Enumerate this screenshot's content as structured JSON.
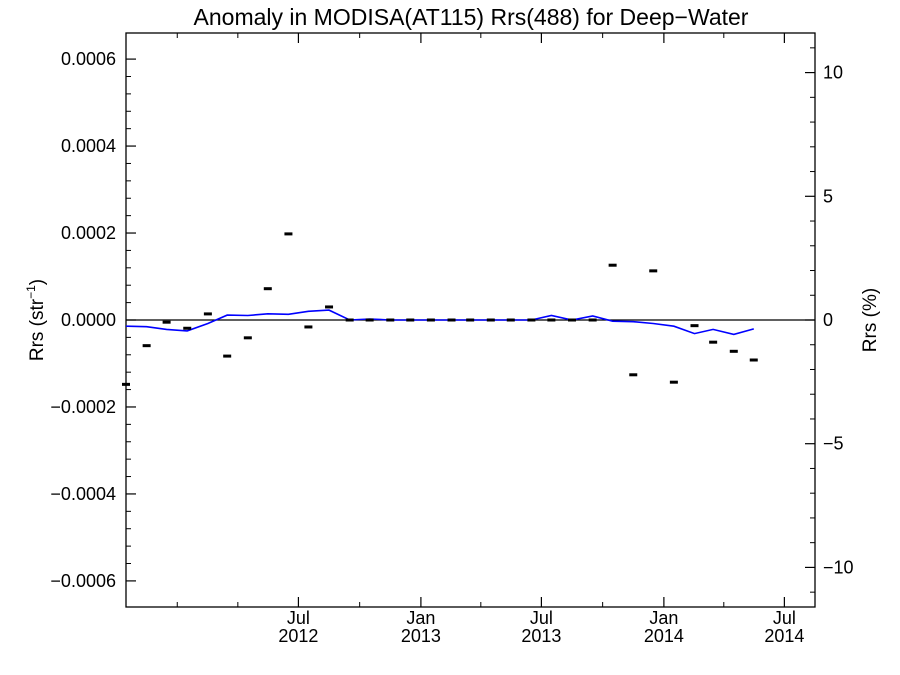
{
  "chart_data": {
    "type": "line",
    "title": "Anomaly in MODISA(AT115) Rrs(488) for Deep−Water",
    "ylabel_left": "Rrs (str⁻¹)",
    "ylabel_left_main": "Rrs (str",
    "ylabel_left_sup": "−1",
    "ylabel_left_close": ")",
    "ylabel_right": "Rrs (%)",
    "x_range": [
      "2011-10-16",
      "2014-08-16"
    ],
    "ylim_left": [
      -0.00066,
      0.00066
    ],
    "ylim_right": [
      -11.6,
      11.6
    ],
    "y_ticks_left": [
      {
        "value": 0.0006,
        "label": "0.0006"
      },
      {
        "value": 0.0004,
        "label": "0.0004"
      },
      {
        "value": 0.0002,
        "label": "0.0002"
      },
      {
        "value": 0.0,
        "label": "0.0000"
      },
      {
        "value": -0.0002,
        "label": "−0.0002"
      },
      {
        "value": -0.0004,
        "label": "−0.0004"
      },
      {
        "value": -0.0006,
        "label": "−0.0006"
      }
    ],
    "y_ticks_right": [
      {
        "value": 10,
        "label": "10"
      },
      {
        "value": 5,
        "label": "5"
      },
      {
        "value": 0,
        "label": "0"
      },
      {
        "value": -5,
        "label": "−5"
      },
      {
        "value": -10,
        "label": "−10"
      }
    ],
    "x_ticks": [
      {
        "date": "2012-07-01",
        "month": "Jul",
        "year": "2012"
      },
      {
        "date": "2013-01-01",
        "month": "Jan",
        "year": "2013"
      },
      {
        "date": "2013-07-01",
        "month": "Jul",
        "year": "2013"
      },
      {
        "date": "2014-01-01",
        "month": "Jan",
        "year": "2014"
      },
      {
        "date": "2014-07-01",
        "month": "Jul",
        "year": "2014"
      }
    ],
    "zero_line": 0,
    "series": [
      {
        "type": "line",
        "color": "#0000ff",
        "axis": "right",
        "points": [
          {
            "x": "2011-10-16",
            "y": -0.25
          },
          {
            "x": "2011-11-16",
            "y": -0.27
          },
          {
            "x": "2011-12-16",
            "y": -0.38
          },
          {
            "x": "2012-01-16",
            "y": -0.44
          },
          {
            "x": "2012-02-16",
            "y": -0.14
          },
          {
            "x": "2012-03-16",
            "y": 0.2
          },
          {
            "x": "2012-04-16",
            "y": 0.18
          },
          {
            "x": "2012-05-16",
            "y": 0.25
          },
          {
            "x": "2012-06-16",
            "y": 0.23
          },
          {
            "x": "2012-07-16",
            "y": 0.35
          },
          {
            "x": "2012-08-16",
            "y": 0.4
          },
          {
            "x": "2012-09-16",
            "y": 0.0
          },
          {
            "x": "2012-10-16",
            "y": 0.04
          },
          {
            "x": "2012-11-16",
            "y": 0.0
          },
          {
            "x": "2012-12-16",
            "y": 0.0
          },
          {
            "x": "2013-01-16",
            "y": 0.0
          },
          {
            "x": "2013-02-16",
            "y": 0.0
          },
          {
            "x": "2013-03-16",
            "y": 0.0
          },
          {
            "x": "2013-04-16",
            "y": 0.0
          },
          {
            "x": "2013-05-16",
            "y": 0.0
          },
          {
            "x": "2013-06-16",
            "y": 0.0
          },
          {
            "x": "2013-07-16",
            "y": 0.18
          },
          {
            "x": "2013-08-16",
            "y": 0.0
          },
          {
            "x": "2013-09-16",
            "y": 0.16
          },
          {
            "x": "2013-10-16",
            "y": -0.05
          },
          {
            "x": "2013-11-16",
            "y": -0.07
          },
          {
            "x": "2013-12-16",
            "y": -0.14
          },
          {
            "x": "2014-01-16",
            "y": -0.25
          },
          {
            "x": "2014-02-16",
            "y": -0.55
          },
          {
            "x": "2014-03-16",
            "y": -0.38
          },
          {
            "x": "2014-04-16",
            "y": -0.58
          },
          {
            "x": "2014-05-16",
            "y": -0.36
          }
        ]
      },
      {
        "type": "scatter",
        "marker": "dash",
        "color": "#000000",
        "axis": "left",
        "points": [
          {
            "x": "2011-10-16",
            "y": -0.000148
          },
          {
            "x": "2011-11-16",
            "y": -5.9e-05
          },
          {
            "x": "2011-12-16",
            "y": -5e-06
          },
          {
            "x": "2012-01-16",
            "y": -1.9e-05
          },
          {
            "x": "2012-02-16",
            "y": 1.4e-05
          },
          {
            "x": "2012-03-16",
            "y": -8.3e-05
          },
          {
            "x": "2012-04-16",
            "y": -4.1e-05
          },
          {
            "x": "2012-05-16",
            "y": 7.2e-05
          },
          {
            "x": "2012-06-16",
            "y": 0.000198
          },
          {
            "x": "2012-07-16",
            "y": -1.6e-05
          },
          {
            "x": "2012-08-16",
            "y": 3e-05
          },
          {
            "x": "2012-09-16",
            "y": 0.0
          },
          {
            "x": "2012-10-16",
            "y": 0.0
          },
          {
            "x": "2012-11-16",
            "y": 0.0
          },
          {
            "x": "2012-12-16",
            "y": 0.0
          },
          {
            "x": "2013-01-16",
            "y": 0.0
          },
          {
            "x": "2013-02-16",
            "y": 0.0
          },
          {
            "x": "2013-03-16",
            "y": 0.0
          },
          {
            "x": "2013-04-16",
            "y": 0.0
          },
          {
            "x": "2013-05-16",
            "y": 0.0
          },
          {
            "x": "2013-06-16",
            "y": 0.0
          },
          {
            "x": "2013-07-16",
            "y": 0.0
          },
          {
            "x": "2013-08-16",
            "y": 0.0
          },
          {
            "x": "2013-09-16",
            "y": 0.0
          },
          {
            "x": "2013-10-16",
            "y": 0.000126
          },
          {
            "x": "2013-11-16",
            "y": -0.000126
          },
          {
            "x": "2013-12-16",
            "y": 0.000113
          },
          {
            "x": "2014-01-16",
            "y": -0.000143
          },
          {
            "x": "2014-02-16",
            "y": -1.3e-05
          },
          {
            "x": "2014-03-16",
            "y": -5.1e-05
          },
          {
            "x": "2014-04-16",
            "y": -7.2e-05
          },
          {
            "x": "2014-05-16",
            "y": -9.2e-05
          }
        ]
      }
    ]
  }
}
